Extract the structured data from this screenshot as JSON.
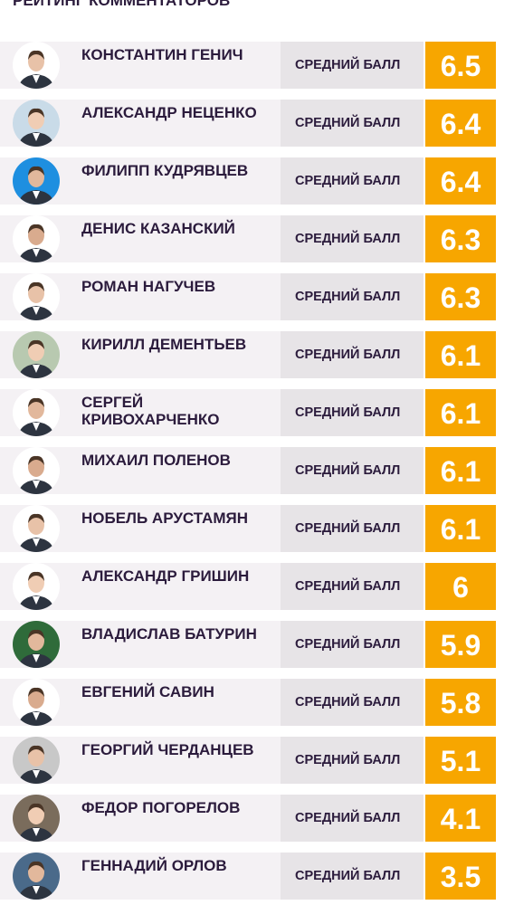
{
  "header": {
    "title": "РЕЙТИНГ КОММЕНТАТОРОВ"
  },
  "rows": [
    {
      "name": "КОНСТАНТИН ГЕНИЧ",
      "score_label": "СРЕДНИЙ БАЛЛ",
      "score": 6.5
    },
    {
      "name": "АЛЕКСАНДР НЕЦЕНКО",
      "score_label": "СРЕДНИЙ БАЛЛ",
      "score": 6.4
    },
    {
      "name": "ФИЛИПП КУДРЯВЦЕВ",
      "score_label": "СРЕДНИЙ БАЛЛ",
      "score": 6.4
    },
    {
      "name": "ДЕНИС КАЗАНСКИЙ",
      "score_label": "СРЕДНИЙ БАЛЛ",
      "score": 6.3
    },
    {
      "name": "РОМАН НАГУЧЕВ",
      "score_label": "СРЕДНИЙ БАЛЛ",
      "score": 6.3
    },
    {
      "name": "КИРИЛЛ ДЕМЕНТЬЕВ",
      "score_label": "СРЕДНИЙ БАЛЛ",
      "score": 6.1
    },
    {
      "name": "СЕРГЕЙ КРИВОХАРЧЕНКО",
      "score_label": "СРЕДНИЙ БАЛЛ",
      "score": 6.1
    },
    {
      "name": "МИХАИЛ ПОЛЕНОВ",
      "score_label": "СРЕДНИЙ БАЛЛ",
      "score": 6.1
    },
    {
      "name": "НОБЕЛЬ АРУСТАМЯН",
      "score_label": "СРЕДНИЙ БАЛЛ",
      "score": 6.1
    },
    {
      "name": "АЛЕКСАНДР ГРИШИН",
      "score_label": "СРЕДНИЙ БАЛЛ",
      "score": 6
    },
    {
      "name": "ВЛАДИСЛАВ БАТУРИН",
      "score_label": "СРЕДНИЙ БАЛЛ",
      "score": 5.9
    },
    {
      "name": "ЕВГЕНИЙ САВИН",
      "score_label": "СРЕДНИЙ БАЛЛ",
      "score": 5.8
    },
    {
      "name": "ГЕОРГИЙ ЧЕРДАНЦЕВ",
      "score_label": "СРЕДНИЙ БАЛЛ",
      "score": 5.1
    },
    {
      "name": "ФЕДОР ПОГОРЕЛОВ",
      "score_label": "СРЕДНИЙ БАЛЛ",
      "score": 4.1
    },
    {
      "name": "ГЕННАДИЙ ОРЛОВ",
      "score_label": "СРЕДНИЙ БАЛЛ",
      "score": 3.5
    }
  ]
}
